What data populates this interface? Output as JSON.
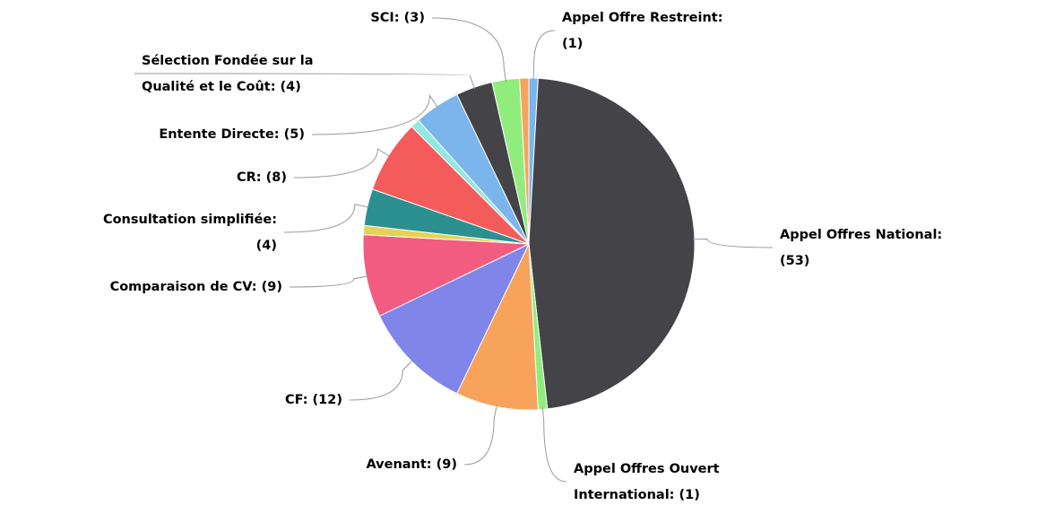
{
  "chart_data": {
    "type": "pie",
    "categories": [
      "Appel Offre Restreint: (1)",
      "Appel Offres National: (53)",
      "Appel Offres Ouvert International: (1)",
      "Avenant: (9)",
      "CF: (12)",
      "Comparaison de CV: (9)",
      null,
      "Consultation simplifiée: (4)",
      "CR: (8)",
      null,
      "Entente Directe: (5)",
      "Sélection Fondée sur la Qualité et le Coût: (4)",
      "SCI: (3)",
      null
    ],
    "values": [
      1,
      53,
      1,
      9,
      12,
      9,
      1,
      4,
      8,
      1,
      5,
      4,
      3,
      1
    ],
    "colors": [
      "#7cb5ec",
      "#434348",
      "#90ed7d",
      "#f7a35c",
      "#8085e9",
      "#f15c80",
      "#e4d354",
      "#2b908f",
      "#f45b5b",
      "#91e8e1",
      "#7cb5ec",
      "#434348",
      "#90ed7d",
      "#f7a35c"
    ]
  }
}
